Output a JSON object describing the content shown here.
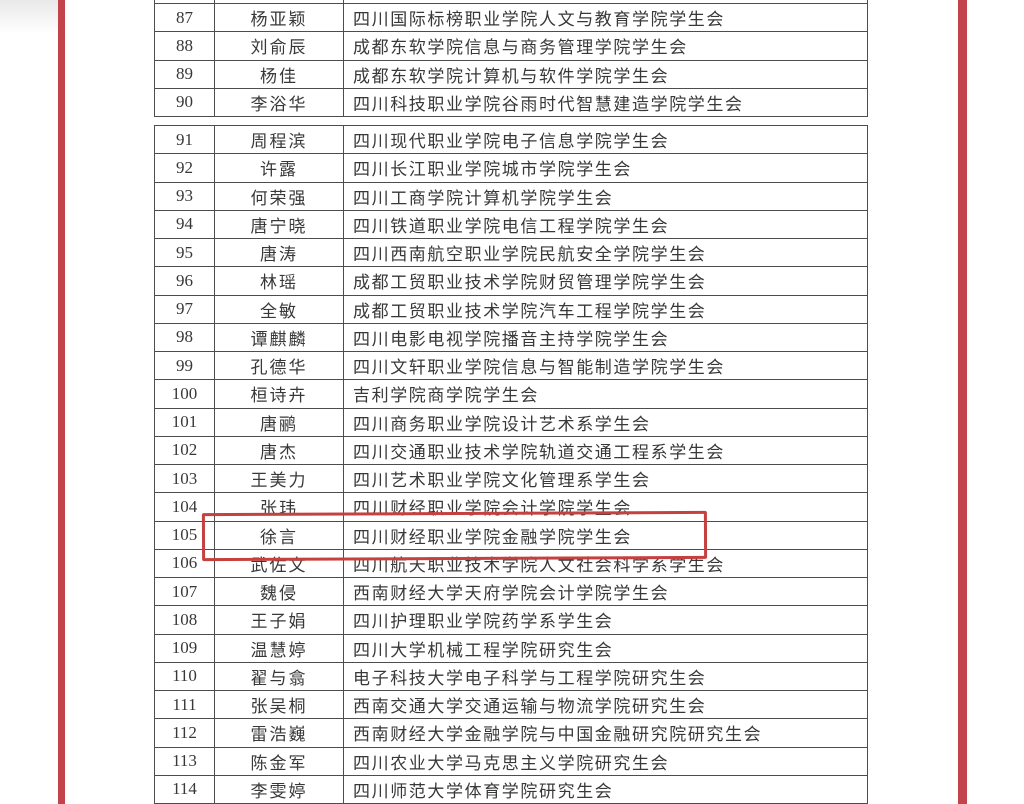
{
  "theme": {
    "rule-red": "#c2434b",
    "hl-red": "#c5413f",
    "line": "#4d4d4d"
  },
  "document": {
    "type": "scanned-name-list-table",
    "highlighted_row_number": "105",
    "highlighted_row_name": "徐言",
    "highlighted_row_org": "四川财经职业学院金融学院学生会"
  },
  "table": {
    "blocks": [
      {
        "rows": [
          {
            "no": "87",
            "name": "杨亚颖",
            "org": "四川国际标榜职业学院人文与教育学院学生会"
          },
          {
            "no": "88",
            "name": "刘俞辰",
            "org": "成都东软学院信息与商务管理学院学生会"
          },
          {
            "no": "89",
            "name": "杨佳",
            "org": "成都东软学院计算机与软件学院学生会"
          },
          {
            "no": "90",
            "name": "李浴华",
            "org": "四川科技职业学院谷雨时代智慧建造学院学生会"
          }
        ]
      },
      {
        "rows": [
          {
            "no": "91",
            "name": "周程滨",
            "org": "四川现代职业学院电子信息学院学生会"
          },
          {
            "no": "92",
            "name": "许露",
            "org": "四川长江职业学院城市学院学生会"
          },
          {
            "no": "93",
            "name": "何荣强",
            "org": "四川工商学院计算机学院学生会"
          },
          {
            "no": "94",
            "name": "唐宁晓",
            "org": "四川铁道职业学院电信工程学院学生会"
          },
          {
            "no": "95",
            "name": "唐涛",
            "org": "四川西南航空职业学院民航安全学院学生会"
          },
          {
            "no": "96",
            "name": "林瑶",
            "org": "成都工贸职业技术学院财贸管理学院学生会"
          },
          {
            "no": "97",
            "name": "全敏",
            "org": "成都工贸职业技术学院汽车工程学院学生会"
          },
          {
            "no": "98",
            "name": "谭麒麟",
            "org": "四川电影电视学院播音主持学院学生会"
          },
          {
            "no": "99",
            "name": "孔德华",
            "org": "四川文轩职业学院信息与智能制造学院学生会"
          },
          {
            "no": "100",
            "name": "桓诗卉",
            "org": "吉利学院商学院学生会"
          },
          {
            "no": "101",
            "name": "唐鹂",
            "org": "四川商务职业学院设计艺术系学生会"
          },
          {
            "no": "102",
            "name": "唐杰",
            "org": "四川交通职业技术学院轨道交通工程系学生会"
          },
          {
            "no": "103",
            "name": "王美力",
            "org": "四川艺术职业学院文化管理系学生会"
          },
          {
            "no": "104",
            "name": "张玮",
            "org": "四川财经职业学院会计学院学生会"
          },
          {
            "no": "105",
            "name": "徐言",
            "org": "四川财经职业学院金融学院学生会"
          },
          {
            "no": "106",
            "name": "武佐文",
            "org": "四川航天职业技术学院人文社会科学系学生会"
          },
          {
            "no": "107",
            "name": "魏侵",
            "org": "西南财经大学天府学院会计学院学生会"
          },
          {
            "no": "108",
            "name": "王子娟",
            "org": "四川护理职业学院药学系学生会"
          },
          {
            "no": "109",
            "name": "温慧婷",
            "org": "四川大学机械工程学院研究生会"
          },
          {
            "no": "110",
            "name": "翟与翕",
            "org": "电子科技大学电子科学与工程学院研究生会"
          },
          {
            "no": "111",
            "name": "张吴桐",
            "org": "西南交通大学交通运输与物流学院研究生会"
          },
          {
            "no": "112",
            "name": "雷浩巍",
            "org": "西南财经大学金融学院与中国金融研究院研究生会"
          },
          {
            "no": "113",
            "name": "陈金军",
            "org": "四川农业大学马克思主义学院研究生会"
          },
          {
            "no": "114",
            "name": "李雯婷",
            "org": "四川师范大学体育学院研究生会"
          }
        ]
      }
    ]
  }
}
